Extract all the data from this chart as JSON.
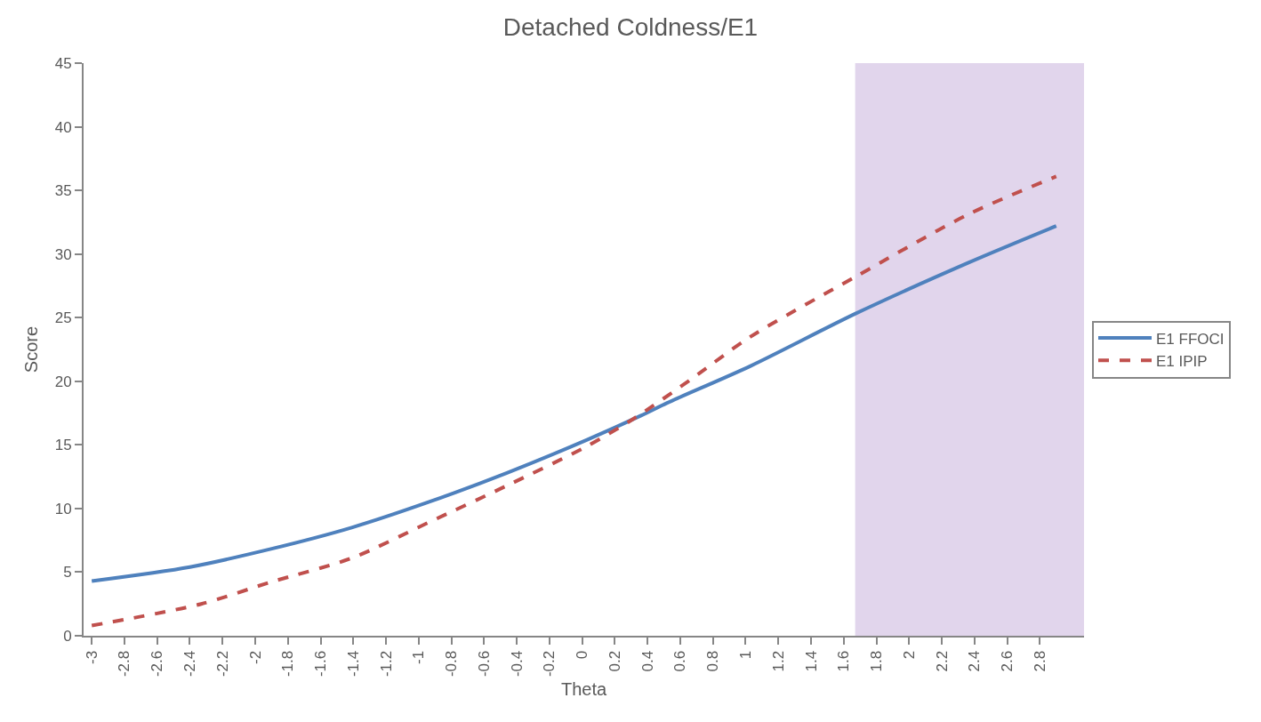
{
  "chart_data": {
    "type": "line",
    "title": "Detached Coldness/E1",
    "xlabel": "Theta",
    "ylabel": "Score",
    "xlim": [
      -3.05,
      3.07
    ],
    "xticks": [
      -3,
      -2.8,
      -2.6,
      -2.4,
      -2.2,
      -2,
      -1.8,
      -1.6,
      -1.4,
      -1.2,
      -1,
      -0.8,
      -0.6,
      -0.4,
      -0.2,
      0,
      0.2,
      0.4,
      0.6,
      0.8,
      1,
      1.2,
      1.4,
      1.6,
      1.8,
      2,
      2.2,
      2.4,
      2.6,
      2.8
    ],
    "ylim": [
      0,
      45
    ],
    "yticks": [
      0,
      5,
      10,
      15,
      20,
      25,
      30,
      35,
      40,
      45
    ],
    "series": [
      {
        "name": "E1 FFOCI",
        "color": "#4f81bd",
        "line_style": "solid",
        "x": [
          -3,
          -2.4,
          -1.91,
          -1.41,
          -0.94,
          -0.46,
          0.03,
          0.36,
          0.52,
          1.03,
          1.67,
          2.36,
          2.9
        ],
        "values": [
          4.3,
          5.4,
          6.8,
          8.5,
          10.5,
          12.8,
          15.4,
          17.3,
          18.3,
          21.2,
          25.3,
          29.3,
          32.2
        ]
      },
      {
        "name": "E1 IPIP",
        "color": "#c0504d",
        "line_style": "dashed",
        "x": [
          -3,
          -2.33,
          -1.91,
          -1.41,
          -0.94,
          -0.46,
          0.03,
          0.32,
          0.66,
          1.03,
          1.67,
          2.36,
          2.9
        ],
        "values": [
          0.8,
          2.5,
          4.2,
          6.1,
          8.9,
          11.8,
          14.9,
          17.1,
          20.1,
          23.5,
          28.2,
          33.1,
          36.1
        ]
      }
    ],
    "bands": [
      {
        "axis": "x",
        "from": 1.67,
        "to": 3.07,
        "color": "#e1d5ec"
      }
    ],
    "grid": false,
    "legend": "right",
    "marker": "none"
  }
}
